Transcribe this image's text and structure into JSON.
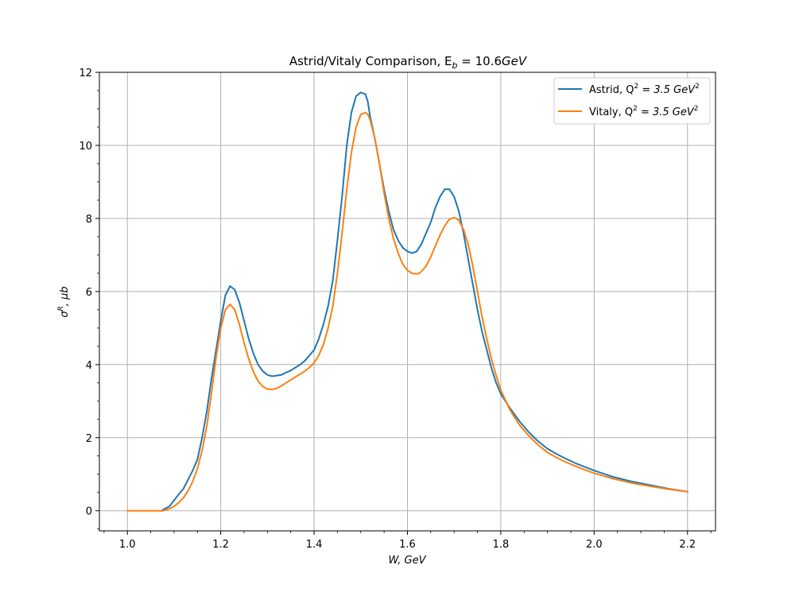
{
  "chart_data": {
    "type": "line",
    "title": "Astrid/Vitaly Comparison, E",
    "title_sub": "b",
    "title_tail": " = 10.6",
    "title_unit": "GeV",
    "xlabel": "W, GeV",
    "ylabel_symbol": "σ",
    "ylabel_sup": "R",
    "ylabel_tail": ", μb",
    "xlim": [
      0.94,
      2.26
    ],
    "ylim": [
      -0.55,
      12.0
    ],
    "xticks": [
      1.0,
      1.2,
      1.4,
      1.6,
      1.8,
      2.0,
      2.2
    ],
    "xtick_labels": [
      "1.0",
      "1.2",
      "1.4",
      "1.6",
      "1.8",
      "2.0",
      "2.2"
    ],
    "yticks": [
      0,
      2,
      4,
      6,
      8,
      10,
      12
    ],
    "ytick_labels": [
      "0",
      "2",
      "4",
      "6",
      "8",
      "10",
      "12"
    ],
    "grid": true,
    "legend_position": "top-right",
    "series": [
      {
        "name": "Astrid, Q² = 3.5 GeV²",
        "legend_label": "Astrid, Q",
        "legend_sup": "2",
        "legend_tail": " = 3.5 GeV",
        "legend_sup2": "2",
        "color": "#1f77b4",
        "x": [
          1.075,
          1.09,
          1.1,
          1.11,
          1.12,
          1.13,
          1.14,
          1.15,
          1.16,
          1.17,
          1.18,
          1.19,
          1.2,
          1.21,
          1.22,
          1.23,
          1.24,
          1.25,
          1.26,
          1.27,
          1.28,
          1.29,
          1.3,
          1.31,
          1.32,
          1.33,
          1.34,
          1.35,
          1.36,
          1.37,
          1.38,
          1.39,
          1.4,
          1.41,
          1.42,
          1.43,
          1.44,
          1.45,
          1.46,
          1.47,
          1.48,
          1.49,
          1.5,
          1.51,
          1.515,
          1.52,
          1.53,
          1.54,
          1.55,
          1.56,
          1.57,
          1.58,
          1.59,
          1.6,
          1.61,
          1.62,
          1.63,
          1.64,
          1.65,
          1.66,
          1.67,
          1.68,
          1.69,
          1.7,
          1.71,
          1.72,
          1.73,
          1.74,
          1.75,
          1.76,
          1.77,
          1.78,
          1.79,
          1.8,
          1.82,
          1.84,
          1.86,
          1.88,
          1.9,
          1.92,
          1.94,
          1.96,
          1.98,
          2.0,
          2.04,
          2.08,
          2.12,
          2.16,
          2.2
        ],
        "y": [
          0.02,
          0.12,
          0.28,
          0.45,
          0.6,
          0.85,
          1.1,
          1.4,
          2.0,
          2.7,
          3.6,
          4.4,
          5.2,
          5.9,
          6.15,
          6.05,
          5.7,
          5.2,
          4.7,
          4.3,
          4.0,
          3.82,
          3.72,
          3.68,
          3.7,
          3.72,
          3.78,
          3.84,
          3.92,
          4.0,
          4.1,
          4.25,
          4.4,
          4.7,
          5.1,
          5.6,
          6.3,
          7.4,
          8.6,
          10.0,
          10.9,
          11.35,
          11.45,
          11.4,
          11.2,
          10.8,
          10.2,
          9.5,
          8.8,
          8.2,
          7.7,
          7.4,
          7.2,
          7.1,
          7.05,
          7.1,
          7.3,
          7.6,
          7.9,
          8.3,
          8.6,
          8.8,
          8.8,
          8.6,
          8.2,
          7.6,
          6.9,
          6.2,
          5.5,
          4.9,
          4.4,
          3.9,
          3.5,
          3.2,
          2.8,
          2.45,
          2.15,
          1.9,
          1.7,
          1.55,
          1.42,
          1.3,
          1.2,
          1.1,
          0.93,
          0.8,
          0.7,
          0.6,
          0.52
        ]
      },
      {
        "name": "Vitaly, Q² = 3.5 GeV²",
        "legend_label": "Vitaly, Q",
        "legend_sup": "2",
        "legend_tail": " = 3.5 GeV",
        "legend_sup2": "2",
        "color": "#ff7f0e",
        "x": [
          1.0,
          1.02,
          1.04,
          1.06,
          1.075,
          1.09,
          1.1,
          1.11,
          1.12,
          1.13,
          1.14,
          1.15,
          1.16,
          1.17,
          1.18,
          1.19,
          1.2,
          1.21,
          1.22,
          1.23,
          1.24,
          1.25,
          1.26,
          1.27,
          1.28,
          1.29,
          1.3,
          1.31,
          1.32,
          1.33,
          1.34,
          1.35,
          1.36,
          1.37,
          1.38,
          1.39,
          1.4,
          1.41,
          1.42,
          1.43,
          1.44,
          1.45,
          1.46,
          1.47,
          1.48,
          1.49,
          1.5,
          1.51,
          1.515,
          1.52,
          1.53,
          1.54,
          1.55,
          1.56,
          1.57,
          1.58,
          1.59,
          1.6,
          1.61,
          1.62,
          1.625,
          1.63,
          1.64,
          1.65,
          1.66,
          1.67,
          1.68,
          1.69,
          1.7,
          1.705,
          1.71,
          1.72,
          1.73,
          1.74,
          1.75,
          1.76,
          1.77,
          1.78,
          1.79,
          1.8,
          1.82,
          1.84,
          1.86,
          1.88,
          1.9,
          1.92,
          1.94,
          1.96,
          1.98,
          2.0,
          2.04,
          2.08,
          2.12,
          2.16,
          2.2
        ],
        "y": [
          0.0,
          0.0,
          0.0,
          0.0,
          0.0,
          0.05,
          0.12,
          0.22,
          0.35,
          0.55,
          0.8,
          1.15,
          1.65,
          2.3,
          3.2,
          4.2,
          5.0,
          5.5,
          5.65,
          5.5,
          5.1,
          4.6,
          4.15,
          3.8,
          3.55,
          3.4,
          3.33,
          3.32,
          3.35,
          3.42,
          3.5,
          3.58,
          3.66,
          3.74,
          3.82,
          3.92,
          4.05,
          4.25,
          4.55,
          5.0,
          5.6,
          6.5,
          7.6,
          8.8,
          9.8,
          10.5,
          10.85,
          10.9,
          10.85,
          10.7,
          10.2,
          9.5,
          8.7,
          8.0,
          7.45,
          7.05,
          6.75,
          6.58,
          6.5,
          6.48,
          6.5,
          6.55,
          6.7,
          6.95,
          7.25,
          7.55,
          7.8,
          7.98,
          8.02,
          8.0,
          7.95,
          7.7,
          7.3,
          6.7,
          6.0,
          5.3,
          4.7,
          4.15,
          3.7,
          3.3,
          2.75,
          2.35,
          2.05,
          1.8,
          1.6,
          1.45,
          1.33,
          1.22,
          1.12,
          1.03,
          0.88,
          0.76,
          0.67,
          0.59,
          0.52
        ]
      }
    ]
  }
}
